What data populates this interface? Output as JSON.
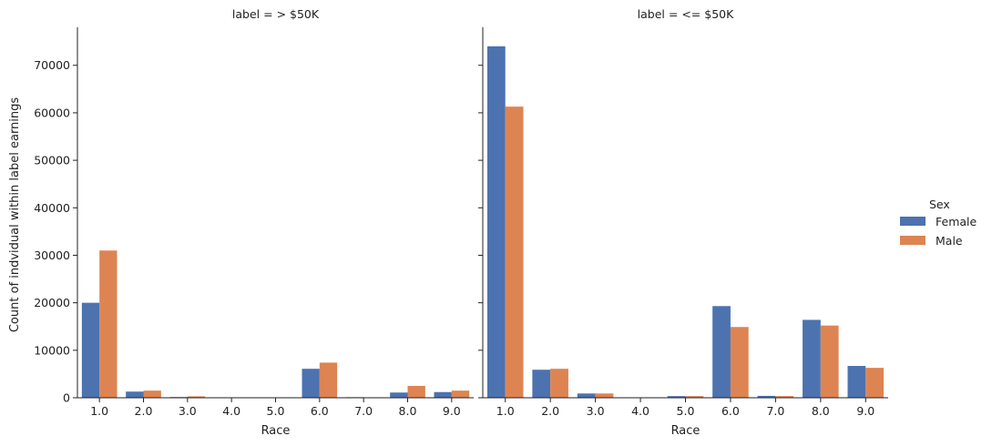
{
  "chart_data": {
    "type": "bar",
    "ylabel": "Count of indvidual within label earnings",
    "xlabel": "Race",
    "categories": [
      "1.0",
      "2.0",
      "3.0",
      "4.0",
      "5.0",
      "6.0",
      "7.0",
      "8.0",
      "9.0"
    ],
    "ylim": [
      0,
      78000
    ],
    "yticks": [
      0,
      10000,
      20000,
      30000,
      40000,
      50000,
      60000,
      70000
    ],
    "legend": {
      "title": "Sex",
      "position": "right",
      "entries": [
        "Female",
        "Male"
      ]
    },
    "colors": {
      "Female": "#4c72b0",
      "Male": "#dd8452"
    },
    "facets": [
      {
        "title": "label = > $50K",
        "series": [
          {
            "name": "Female",
            "values": [
              20000,
              1300,
              150,
              30,
              20,
              6100,
              120,
              1100,
              1200
            ]
          },
          {
            "name": "Male",
            "values": [
              31000,
              1500,
              300,
              40,
              30,
              7400,
              100,
              2500,
              1500
            ]
          }
        ]
      },
      {
        "title": "label = <= $50K",
        "series": [
          {
            "name": "Female",
            "values": [
              74000,
              5900,
              900,
              60,
              350,
              19300,
              400,
              16400,
              6700
            ]
          },
          {
            "name": "Male",
            "values": [
              61300,
              6100,
              900,
              60,
              350,
              14900,
              350,
              15200,
              6300
            ]
          }
        ]
      }
    ]
  }
}
